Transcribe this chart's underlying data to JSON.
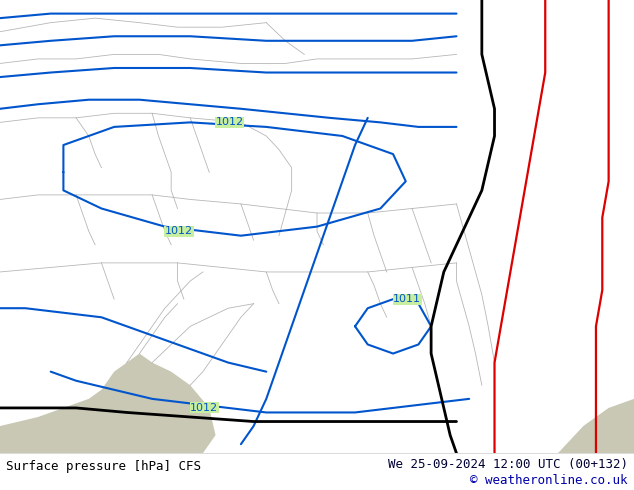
{
  "title_left": "Surface pressure [hPa] CFS",
  "title_right": "We 25-09-2024 12:00 UTC (00+132)",
  "title_right2": "© weatheronline.co.uk",
  "bg_color": "#c8eea0",
  "blue_color": "#0055cc",
  "black_color": "#000000",
  "red_color": "#dd0000",
  "border_color": "#aaaaaa",
  "white_color": "#ffffff",
  "gray_land": "#c8c8b4",
  "font_size_labels": 8,
  "font_size_bottom": 9,
  "figsize": [
    6.34,
    4.9
  ],
  "dpi": 100
}
